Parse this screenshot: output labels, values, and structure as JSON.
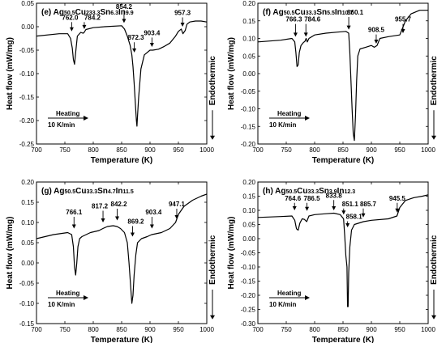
{
  "chart_data": [
    {
      "panel": "e",
      "type": "line",
      "title_parts": [
        {
          "t": "(e) Ag",
          "sub": false
        },
        {
          "t": "50.5",
          "sub": true
        },
        {
          "t": "Cu",
          "sub": false
        },
        {
          "t": "233.3",
          "sub": true
        },
        {
          "t": "Sn",
          "sub": false
        },
        {
          "t": "6.3",
          "sub": true
        },
        {
          "t": "In",
          "sub": false
        },
        {
          "t": "9.9",
          "sub": true
        }
      ],
      "xlabel": "Temperature (K)",
      "ylabel": "Heat flow (mW/mg)",
      "right_label": "Endothermic",
      "heating_label": "Heating",
      "rate_label": "10 K/min",
      "xlim": [
        700,
        1000
      ],
      "ylim": [
        -0.25,
        0.05
      ],
      "xticks": [
        700,
        750,
        800,
        850,
        900,
        950,
        1000
      ],
      "yticks": [
        -0.25,
        -0.2,
        -0.15,
        -0.1,
        -0.05,
        0.0,
        0.05
      ],
      "ytick_labels": [
        "-0.25",
        "-0.20",
        "-0.15",
        "-0.10",
        "-0.05",
        "0.00",
        "0.05"
      ],
      "x": [
        700,
        740,
        755,
        760,
        763,
        765,
        767,
        769,
        772,
        778,
        782,
        784,
        787,
        800,
        820,
        850,
        855,
        860,
        865,
        868,
        870,
        872,
        874,
        876,
        877,
        878,
        880,
        884,
        890,
        900,
        905,
        915,
        925,
        935,
        945,
        950,
        955,
        958,
        962,
        965,
        970,
        980,
        990,
        1000
      ],
      "y": [
        -0.02,
        -0.015,
        -0.015,
        -0.025,
        -0.045,
        -0.07,
        -0.08,
        -0.055,
        -0.02,
        -0.012,
        -0.014,
        -0.012,
        -0.006,
        -0.002,
        0.0,
        0.002,
        -0.005,
        -0.02,
        -0.04,
        -0.06,
        -0.085,
        -0.12,
        -0.16,
        -0.2,
        -0.212,
        -0.19,
        -0.15,
        -0.09,
        -0.06,
        -0.05,
        -0.05,
        -0.048,
        -0.042,
        -0.035,
        -0.02,
        -0.01,
        -0.005,
        -0.015,
        -0.008,
        0.005,
        0.01,
        0.012,
        0.012,
        0.01
      ],
      "annotations": [
        {
          "label": "762.0",
          "x": 762.0,
          "tip_y": -0.01,
          "text_y": 0.015,
          "dx": -2
        },
        {
          "label": "784.2",
          "x": 784.2,
          "tip_y": -0.005,
          "text_y": 0.015,
          "dx": 10
        },
        {
          "label": "854.2",
          "x": 854.2,
          "tip_y": 0.008,
          "text_y": 0.038,
          "dx": 0
        },
        {
          "label": "872.3",
          "x": 872.3,
          "tip_y": -0.055,
          "text_y": -0.028,
          "dx": 2
        },
        {
          "label": "903.4",
          "x": 903.4,
          "tip_y": -0.043,
          "text_y": -0.018,
          "dx": 0
        },
        {
          "label": "957.3",
          "x": 957.3,
          "tip_y": 0.0,
          "text_y": 0.025,
          "dx": 0
        }
      ]
    },
    {
      "panel": "f",
      "type": "line",
      "title_parts": [
        {
          "t": "(f) Ag",
          "sub": false
        },
        {
          "t": "50.5",
          "sub": true
        },
        {
          "t": "Cu",
          "sub": false
        },
        {
          "t": "33.3",
          "sub": true
        },
        {
          "t": "Sn",
          "sub": false
        },
        {
          "t": "5.5",
          "sub": true
        },
        {
          "t": "In",
          "sub": false
        },
        {
          "t": "10.7",
          "sub": true
        }
      ],
      "xlabel": "Temperature (K)",
      "ylabel": "Heat flow (mW/mg)",
      "right_label": "Endothermic",
      "heating_label": "Heating",
      "rate_label": "10 K/min",
      "xlim": [
        700,
        1000
      ],
      "ylim": [
        -0.2,
        0.2
      ],
      "xticks": [
        700,
        750,
        800,
        850,
        900,
        950,
        1000
      ],
      "yticks": [
        -0.2,
        -0.15,
        -0.1,
        -0.05,
        0.0,
        0.05,
        0.1,
        0.15,
        0.2
      ],
      "ytick_labels": [
        "-0.20",
        "-0.15",
        "-0.10",
        "-0.05",
        "0.00",
        "0.05",
        "0.10",
        "0.15",
        "0.20"
      ],
      "x": [
        700,
        740,
        760,
        765,
        767,
        769,
        771,
        773,
        776,
        780,
        783,
        785,
        787,
        790,
        800,
        820,
        840,
        855,
        860,
        862,
        864,
        866,
        868,
        870,
        872,
        874,
        876,
        880,
        890,
        900,
        905,
        910,
        915,
        930,
        950,
        955,
        960,
        970,
        985,
        1000
      ],
      "y": [
        0.09,
        0.095,
        0.1,
        0.09,
        0.06,
        0.02,
        0.025,
        0.06,
        0.08,
        0.088,
        0.092,
        0.1,
        0.09,
        0.1,
        0.11,
        0.115,
        0.118,
        0.12,
        0.115,
        0.06,
        -0.02,
        -0.1,
        -0.17,
        -0.19,
        -0.12,
        -0.02,
        0.05,
        0.07,
        0.075,
        0.08,
        0.075,
        0.08,
        0.1,
        0.105,
        0.11,
        0.13,
        0.15,
        0.17,
        0.18,
        0.18
      ],
      "annotations": [
        {
          "label": "766.3",
          "x": 766.3,
          "tip_y": 0.105,
          "text_y": 0.148,
          "dx": -2
        },
        {
          "label": "784.6",
          "x": 784.6,
          "tip_y": 0.105,
          "text_y": 0.148,
          "dx": 8
        },
        {
          "label": "860.1",
          "x": 860.1,
          "tip_y": 0.125,
          "text_y": 0.168,
          "dx": 8
        },
        {
          "label": "908.5",
          "x": 908.5,
          "tip_y": 0.085,
          "text_y": 0.118,
          "dx": 0
        },
        {
          "label": "955.7",
          "x": 955.7,
          "tip_y": 0.115,
          "text_y": 0.148,
          "dx": 0
        }
      ]
    },
    {
      "panel": "g",
      "type": "line",
      "title_parts": [
        {
          "t": "(g) Ag",
          "sub": false
        },
        {
          "t": "50.5",
          "sub": true
        },
        {
          "t": "Cu",
          "sub": false
        },
        {
          "t": "33.3",
          "sub": true
        },
        {
          "t": "Sn",
          "sub": false
        },
        {
          "t": "4.7",
          "sub": true
        },
        {
          "t": "In",
          "sub": false
        },
        {
          "t": "11.5",
          "sub": true
        }
      ],
      "xlabel": "Temperature (K)",
      "ylabel": "Heat flow (mW/mg)",
      "right_label": "Endothermic",
      "heating_label": "Heating",
      "rate_label": "10 K/min",
      "xlim": [
        700,
        1000
      ],
      "ylim": [
        -0.15,
        0.2
      ],
      "xticks": [
        700,
        750,
        800,
        850,
        900,
        950,
        1000
      ],
      "yticks": [
        -0.15,
        -0.1,
        -0.05,
        0.0,
        0.05,
        0.1,
        0.15,
        0.2
      ],
      "ytick_labels": [
        "-0.15",
        "-0.10",
        "-0.05",
        "0.00",
        "0.05",
        "0.10",
        "0.15",
        "0.20"
      ],
      "x": [
        700,
        730,
        755,
        762,
        765,
        767,
        769,
        771,
        773,
        776,
        780,
        795,
        810,
        817,
        825,
        835,
        842,
        848,
        855,
        860,
        863,
        866,
        868,
        870,
        872,
        875,
        878,
        885,
        895,
        903,
        910,
        920,
        935,
        945,
        950,
        960,
        975,
        990,
        1000
      ],
      "y": [
        0.06,
        0.07,
        0.075,
        0.07,
        0.04,
        -0.01,
        -0.03,
        0.0,
        0.04,
        0.06,
        0.065,
        0.075,
        0.08,
        0.085,
        0.09,
        0.092,
        0.09,
        0.085,
        0.075,
        0.05,
        0.0,
        -0.06,
        -0.1,
        -0.08,
        -0.03,
        0.02,
        0.05,
        0.06,
        0.065,
        0.07,
        0.072,
        0.075,
        0.085,
        0.1,
        0.12,
        0.14,
        0.155,
        0.165,
        0.17
      ],
      "annotations": [
        {
          "label": "766.1",
          "x": 766.1,
          "tip_y": 0.085,
          "text_y": 0.12,
          "dx": 0
        },
        {
          "label": "817.2",
          "x": 817.2,
          "tip_y": 0.1,
          "text_y": 0.135,
          "dx": -4
        },
        {
          "label": "842.2",
          "x": 842.2,
          "tip_y": 0.105,
          "text_y": 0.14,
          "dx": 2
        },
        {
          "label": "869.2",
          "x": 869.2,
          "tip_y": 0.065,
          "text_y": 0.097,
          "dx": 4
        },
        {
          "label": "903.4",
          "x": 903.4,
          "tip_y": 0.085,
          "text_y": 0.12,
          "dx": 2
        },
        {
          "label": "947.1",
          "x": 947.1,
          "tip_y": 0.108,
          "text_y": 0.14,
          "dx": 0
        }
      ]
    },
    {
      "panel": "h",
      "type": "line",
      "title_parts": [
        {
          "t": "(h) Ag",
          "sub": false
        },
        {
          "t": "50.5",
          "sub": true
        },
        {
          "t": "Cu",
          "sub": false
        },
        {
          "t": "33.3",
          "sub": true
        },
        {
          "t": "Sn",
          "sub": false
        },
        {
          "t": "3.9",
          "sub": true
        },
        {
          "t": "In",
          "sub": false
        },
        {
          "t": "12.3",
          "sub": true
        }
      ],
      "xlabel": "Temperature (K)",
      "ylabel": "Heat flow (mW/mg)",
      "right_label": "Endothermic",
      "heating_label": "Heating",
      "rate_label": "10 K/min",
      "xlim": [
        700,
        1000
      ],
      "ylim": [
        -0.3,
        0.2
      ],
      "xticks": [
        700,
        750,
        800,
        850,
        900,
        950,
        1000
      ],
      "yticks": [
        -0.3,
        -0.25,
        -0.2,
        -0.15,
        -0.1,
        -0.05,
        0.0,
        0.05,
        0.1,
        0.15,
        0.2
      ],
      "ytick_labels": [
        "-0.30",
        "-0.25",
        "-0.20",
        "-0.15",
        "-0.10",
        "-0.05",
        "0.00",
        "0.05",
        "0.10",
        "0.15",
        "0.20"
      ],
      "x": [
        700,
        740,
        760,
        765,
        768,
        771,
        774,
        778,
        782,
        786,
        790,
        800,
        820,
        834,
        845,
        851,
        853,
        855,
        857,
        858,
        859,
        860,
        862,
        865,
        870,
        886,
        900,
        930,
        945,
        950,
        960,
        975,
        990,
        1000
      ],
      "y": [
        0.075,
        0.078,
        0.08,
        0.065,
        0.035,
        0.03,
        0.055,
        0.07,
        0.068,
        0.06,
        0.08,
        0.085,
        0.088,
        0.09,
        0.085,
        0.07,
        0.01,
        -0.06,
        -0.1,
        -0.24,
        -0.24,
        -0.12,
        -0.03,
        0.03,
        0.05,
        0.06,
        0.065,
        0.07,
        0.08,
        0.11,
        0.135,
        0.145,
        0.15,
        0.155
      ],
      "annotations": [
        {
          "label": "764.6",
          "x": 764.6,
          "tip_y": 0.1,
          "text_y": 0.135,
          "dx": -2
        },
        {
          "label": "786.5",
          "x": 786.5,
          "tip_y": 0.098,
          "text_y": 0.135,
          "dx": 6
        },
        {
          "label": "833.8",
          "x": 833.8,
          "tip_y": 0.1,
          "text_y": 0.145,
          "dx": 0
        },
        {
          "label": "851.1",
          "x": 851.1,
          "tip_y": 0.085,
          "text_y": 0.115,
          "dx": 8
        },
        {
          "label": "858.1",
          "x": 858.1,
          "tip_y": 0.04,
          "text_y": 0.07,
          "dx": 8
        },
        {
          "label": "885.7",
          "x": 885.7,
          "tip_y": 0.075,
          "text_y": 0.115,
          "dx": 6
        },
        {
          "label": "945.5",
          "x": 945.5,
          "tip_y": 0.092,
          "text_y": 0.135,
          "dx": 0
        }
      ]
    }
  ]
}
